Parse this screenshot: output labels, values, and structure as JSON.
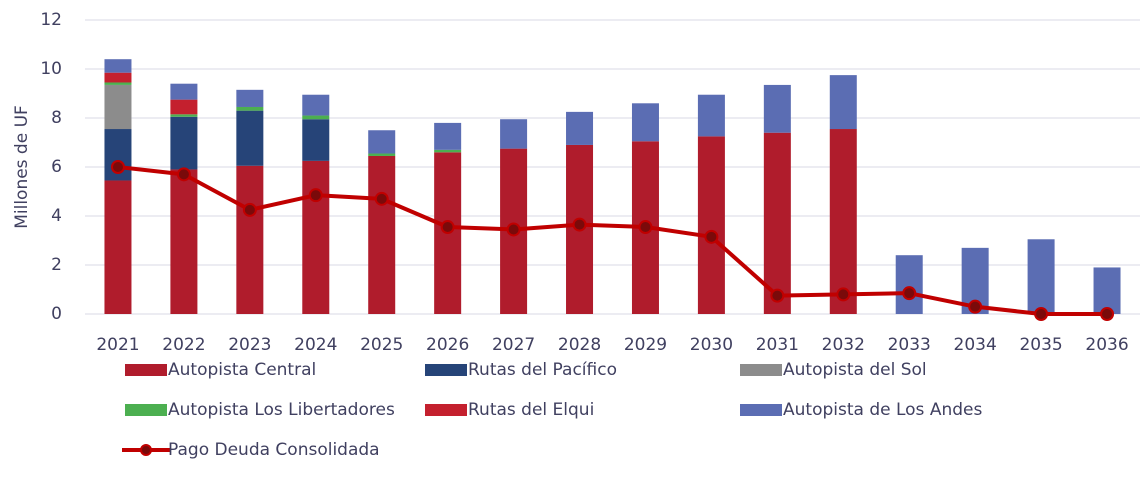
{
  "chart_data": {
    "type": "bar",
    "y_label": "Millones de UF",
    "categories": [
      "2021",
      "2022",
      "2023",
      "2024",
      "2025",
      "2026",
      "2027",
      "2028",
      "2029",
      "2030",
      "2031",
      "2032",
      "2033",
      "2034",
      "2035",
      "2036"
    ],
    "series": [
      {
        "name": "Autopista Central",
        "color": "#b01c2c",
        "values": [
          5.45,
          5.9,
          6.05,
          6.25,
          6.45,
          6.6,
          6.75,
          6.9,
          7.05,
          7.25,
          7.4,
          7.55,
          0,
          0,
          0,
          0
        ]
      },
      {
        "name": "Rutas del Pacífico",
        "color": "#264478",
        "values": [
          2.1,
          2.15,
          2.25,
          1.7,
          0,
          0,
          0,
          0,
          0,
          0,
          0,
          0,
          0,
          0,
          0,
          0
        ]
      },
      {
        "name": "Autopista del Sol",
        "color": "#8c8c8c",
        "values": [
          1.8,
          0,
          0,
          0,
          0,
          0,
          0,
          0,
          0,
          0,
          0,
          0,
          0,
          0,
          0,
          0
        ]
      },
      {
        "name": "Autopista Los Libertadores",
        "color": "#4caf50",
        "values": [
          0.1,
          0.1,
          0.15,
          0.15,
          0.1,
          0.1,
          0,
          0,
          0,
          0,
          0,
          0,
          0,
          0,
          0,
          0
        ]
      },
      {
        "name": "Rutas del Elqui",
        "color": "#c4202e",
        "values": [
          0.4,
          0.6,
          0,
          0,
          0,
          0,
          0,
          0,
          0,
          0,
          0,
          0,
          0,
          0,
          0,
          0
        ]
      },
      {
        "name": "Autopista de Los Andes",
        "color": "#5b6db3",
        "values": [
          0.55,
          0.65,
          0.7,
          0.85,
          0.95,
          1.1,
          1.2,
          1.35,
          1.55,
          1.7,
          1.95,
          2.2,
          2.4,
          2.7,
          3.05,
          1.9
        ]
      },
      {
        "name": "Pago Deuda Consolidada",
        "type": "line",
        "color": "#c00000",
        "marker_color": "#7a0a0a",
        "values": [
          6.0,
          5.7,
          4.25,
          4.85,
          4.7,
          3.55,
          3.45,
          3.65,
          3.55,
          3.15,
          0.75,
          0.8,
          0.85,
          0.3,
          0,
          0
        ]
      }
    ],
    "ylim": [
      0,
      12
    ],
    "yticks": [
      0,
      2,
      4,
      6,
      8,
      10,
      12
    ],
    "grid": true
  }
}
